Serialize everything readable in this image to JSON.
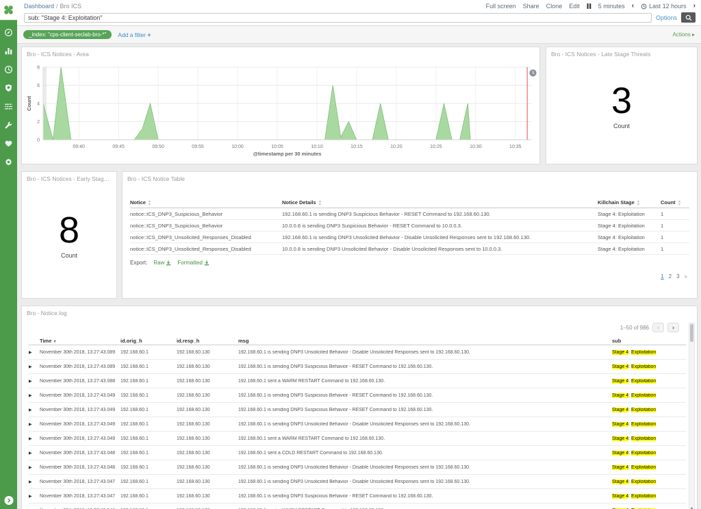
{
  "topnav": {
    "breadcrumb": {
      "root": "Dashboard",
      "separator": "/",
      "current": "Bro ICS"
    },
    "menu": [
      "Full screen",
      "Share",
      "Clone",
      "Edit"
    ],
    "controls": {
      "pause_icon": "pause",
      "refresh_interval": "5 minutes",
      "prev_icon": "chevron-left",
      "time_icon": "clock",
      "time_range": "Last 12 hours",
      "next_icon": "chevron-right",
      "prev_glyph": "‹",
      "next_glyph": "›"
    },
    "search": {
      "value": "sub: \"Stage 4: Exploitation\"",
      "options_label": "Options",
      "search_icon": "magnifier"
    }
  },
  "filter_bar": {
    "pill": "_index: \"cps-client-seclab-bro-*\"",
    "add_filter_label": "Add a filter",
    "add_filter_plus": "+",
    "actions_label": "Actions ▸"
  },
  "sidebar": {
    "logo_icon": "clover",
    "icons": [
      "compass",
      "bar-chart",
      "clock",
      "shield",
      "sliders",
      "wrench",
      "heart",
      "gear"
    ],
    "expand_icon": "chevron-right"
  },
  "panels": {
    "area": {
      "title": "Bro - ICS Notices - Area",
      "corner_icon": "clock-circle"
    },
    "late_stage": {
      "title": "Bro - ICS Notices - Late Stage Threats",
      "value": "3",
      "label": "Count"
    },
    "early_stage": {
      "title": "Bro - ICS Notices - Early Stage T...",
      "value": "8",
      "label": "Count"
    },
    "notice_table": {
      "title": "Bro - ICS Notice Table",
      "columns": [
        "Notice",
        "Notice Details",
        "Killchain Stage",
        "Count"
      ],
      "rows": [
        [
          "notice::ICS_DNP3_Suspicious_Behavior",
          "192.168.60.1 is sending DNP3 Suspicious Behavior - RESET Command to 192.168.60.130.",
          "Stage 4: Exploitation",
          "1"
        ],
        [
          "notice::ICS_DNP3_Suspicious_Behavior",
          "10.0.0.8 is sending DNP3 Suspicious Behavior - RESET Command to 10.0.0.3.",
          "Stage 4: Exploitation",
          "1"
        ],
        [
          "notice::ICS_DNP3_Unsolicited_Responses_Disabled",
          "192.168.60.1 is sending DNP3 Unsolicited Behavior - Disable Unsolicited Responses sent to 192.168.60.130.",
          "Stage 4: Exploitation",
          "1"
        ],
        [
          "notice::ICS_DNP3_Unsolicited_Responses_Disabled",
          "10.0.0.8 is sending DNP3 Unsolicited Behavior - Disable Unsolicited Responses sent to 10.0.0.3.",
          "Stage 4: Exploitation",
          "1"
        ]
      ],
      "export": {
        "label": "Export:",
        "links": [
          "Raw",
          "Formatted"
        ]
      },
      "pagination": [
        "1",
        "2",
        "3",
        "»"
      ]
    },
    "notice_log": {
      "title": "Bro - Notice.log",
      "pager": {
        "range_label": "1–50 of 986",
        "prev": "‹",
        "next": "›"
      },
      "columns": [
        {
          "label": "Time",
          "sorted": "desc"
        },
        {
          "label": "id.orig_h"
        },
        {
          "label": "id.resp_h"
        },
        {
          "label": "msg"
        },
        {
          "label": "sub"
        }
      ],
      "rows": [
        {
          "time": "November 30th 2018, 13:27:43.089",
          "orig": "192.168.60.1",
          "resp": "192.168.60.130",
          "msg": "192.168.60.1 is sending DNP3 Unsolicited Behavior - Disable Unsolicited Responses sent to 192.168.60.130.",
          "sub": "Stage 4: Exploitation"
        },
        {
          "time": "November 30th 2018, 13:27:43.089",
          "orig": "192.168.60.1",
          "resp": "192.168.60.130",
          "msg": "192.168.60.1 is sending DNP3 Suspicious Behavior - RESET Command to 192.168.60.130.",
          "sub": "Stage 4: Exploitation"
        },
        {
          "time": "November 30th 2018, 13:27:43.088",
          "orig": "192.168.60.1",
          "resp": "192.168.60.130",
          "msg": "192.168.60.1 sent a WARM RESTART Command to 192.168.60.130.",
          "sub": "Stage 4: Exploitation"
        },
        {
          "time": "November 30th 2018, 13:27:43.049",
          "orig": "192.168.60.1",
          "resp": "192.168.60.130",
          "msg": "192.168.60.1 is sending DNP3 Suspicious Behavior - RESET Command to 192.168.60.130.",
          "sub": "Stage 4: Exploitation"
        },
        {
          "time": "November 30th 2018, 13:27:43.049",
          "orig": "192.168.60.1",
          "resp": "192.168.60.130",
          "msg": "192.168.60.1 is sending DNP3 Suspicious Behavior - RESET Command to 192.168.60.130.",
          "sub": "Stage 4: Exploitation"
        },
        {
          "time": "November 30th 2018, 13:27:43.049",
          "orig": "192.168.60.1",
          "resp": "192.168.60.130",
          "msg": "192.168.60.1 is sending DNP3 Unsolicited Behavior - Disable Unsolicited Responses sent to 192.168.60.130.",
          "sub": "Stage 4: Exploitation"
        },
        {
          "time": "November 30th 2018, 13:27:43.049",
          "orig": "192.168.60.1",
          "resp": "192.168.60.130",
          "msg": "192.168.60.1 sent a WARM RESTART Command to 192.168.60.130.",
          "sub": "Stage 4: Exploitation"
        },
        {
          "time": "November 30th 2018, 13:27:43.048",
          "orig": "192.168.60.1",
          "resp": "192.168.60.130",
          "msg": "192.168.60.1 sent a COLD RESTART Command to 192.168.60.130.",
          "sub": "Stage 4: Exploitation"
        },
        {
          "time": "November 30th 2018, 13:27:43.048",
          "orig": "192.168.60.1",
          "resp": "192.168.60.130",
          "msg": "192.168.60.1 is sending DNP3 Unsolicited Behavior - Disable Unsolicited Responses sent to 192.168.60.130.",
          "sub": "Stage 4: Exploitation"
        },
        {
          "time": "November 30th 2018, 13:27:43.047",
          "orig": "192.168.60.1",
          "resp": "192.168.60.130",
          "msg": "192.168.60.1 is sending DNP3 Unsolicited Behavior - Disable Unsolicited Responses sent to 192.168.60.130.",
          "sub": "Stage 4: Exploitation"
        },
        {
          "time": "November 30th 2018, 13:27:43.047",
          "orig": "192.168.60.1",
          "resp": "192.168.60.130",
          "msg": "192.168.60.1 is sending DNP3 Suspicious Behavior - RESET Command to 192.168.60.130.",
          "sub": "Stage 4: Exploitation"
        },
        {
          "time": "November 30th 2018, 13:27:43.046",
          "orig": "192.168.60.1",
          "resp": "192.168.60.130",
          "msg": "192.168.60.1 sent a WARM RESTART Command to 192.168.60.130.",
          "sub": "Stage 4: Exploitation"
        }
      ]
    }
  },
  "chart_data": {
    "type": "area",
    "title": "Bro - ICS Notices - Area",
    "xlabel": "@timestamp per 30 minutes",
    "ylabel": "Count",
    "ylim": [
      0,
      8
    ],
    "yticks": [
      0,
      2,
      4,
      6,
      8
    ],
    "xticks": [
      "09:40",
      "09:45",
      "09:50",
      "09:55",
      "10:00",
      "10:05",
      "10:10",
      "10:15",
      "10:20",
      "10:25",
      "10:30",
      "10:35"
    ],
    "x_domain": [
      "09:35:30",
      "10:37:00"
    ],
    "now_marker": "10:36:30",
    "grid": true,
    "legend_position": "none",
    "series": [
      {
        "name": "Count",
        "points": [
          [
            "09:35:30",
            4
          ],
          [
            "09:36:45",
            0
          ],
          [
            "09:37:45",
            8
          ],
          [
            "09:39:00",
            0
          ],
          [
            "09:47:00",
            0
          ],
          [
            "09:48:00",
            1.2
          ],
          [
            "09:49:00",
            4
          ],
          [
            "09:50:00",
            0
          ],
          [
            "10:11:00",
            0
          ],
          [
            "10:12:00",
            6
          ],
          [
            "10:13:00",
            0.3
          ],
          [
            "10:14:00",
            2
          ],
          [
            "10:15:00",
            0
          ],
          [
            "10:17:00",
            0
          ],
          [
            "10:18:00",
            4
          ],
          [
            "10:19:00",
            0
          ],
          [
            "10:25:00",
            0
          ],
          [
            "10:26:00",
            4
          ],
          [
            "10:27:00",
            0
          ],
          [
            "10:28:00",
            0
          ],
          [
            "10:29:00",
            4
          ],
          [
            "10:29:20",
            0
          ]
        ]
      }
    ],
    "fill_color": "#a9d9a0",
    "stroke_color": "#7cbf78",
    "now_marker_color": "#ef8f8f"
  },
  "colors": {
    "sidebar_green": "#4b9b4b",
    "pill_green": "#57a457",
    "link_blue": "#4a97c6",
    "export_green": "#3f9142",
    "highlight_yellow": "#ffff00",
    "page_bg": "#ececec"
  }
}
